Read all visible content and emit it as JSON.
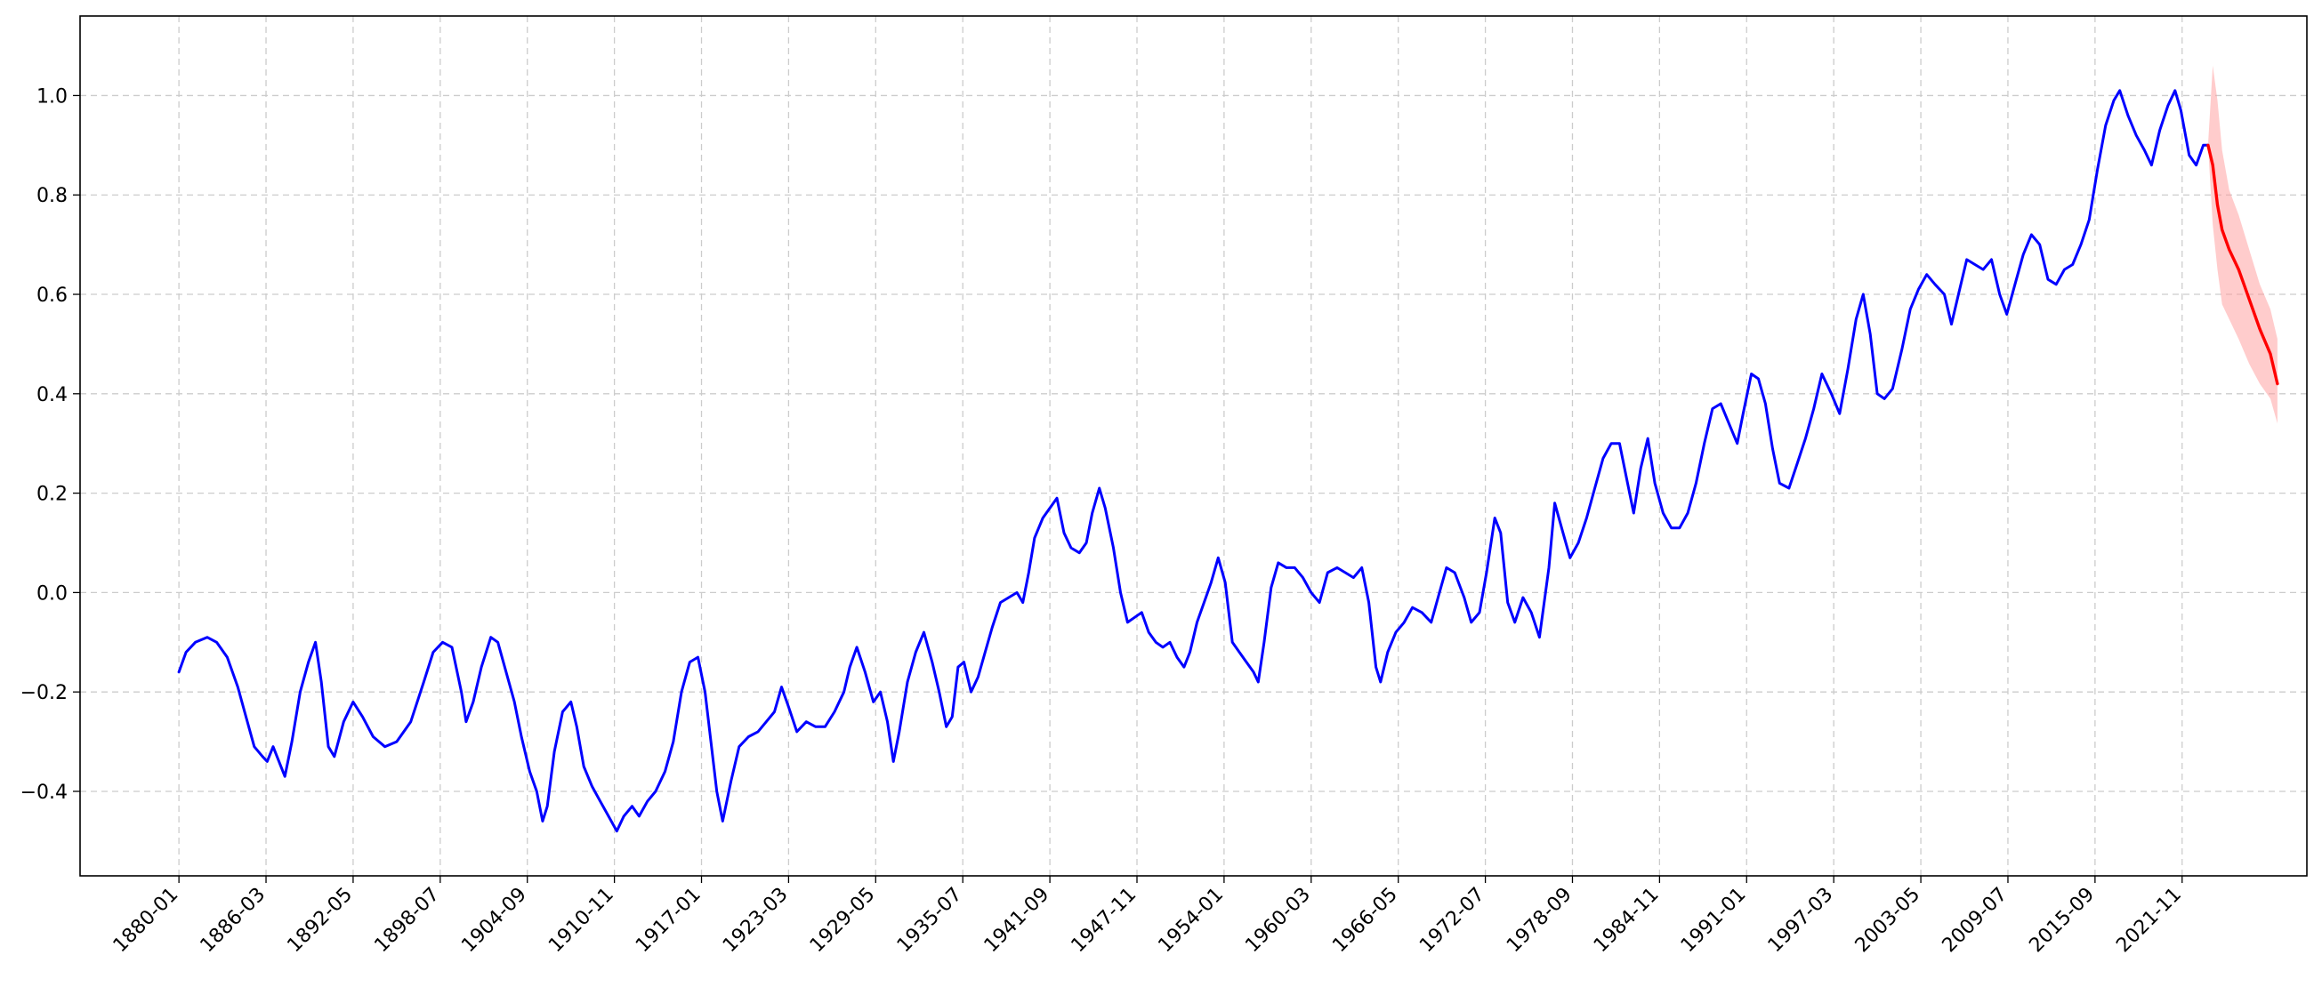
{
  "chart_data": {
    "type": "line",
    "title": "",
    "xlabel": "",
    "ylabel": "",
    "x_tick_labels": [
      "1880-01",
      "1886-03",
      "1892-05",
      "1898-07",
      "1904-09",
      "1910-11",
      "1917-01",
      "1923-03",
      "1929-05",
      "1935-07",
      "1941-09",
      "1947-11",
      "1954-01",
      "1960-03",
      "1966-05",
      "1972-07",
      "1978-09",
      "1984-11",
      "1991-01",
      "1997-03",
      "2003-05",
      "2009-07",
      "2015-09",
      "2021-11"
    ],
    "y_ticks": [
      -0.4,
      -0.2,
      0.0,
      0.2,
      0.4,
      0.6,
      0.8,
      1.0
    ],
    "y_tick_labels": [
      "−0.4",
      "−0.2",
      "0.0",
      "0.2",
      "0.4",
      "0.6",
      "0.8",
      "1.0"
    ],
    "xlim": [
      "1873-01",
      "2030-09"
    ],
    "ylim": [
      -0.57,
      1.16
    ],
    "grid": true,
    "grid_style": "dashed",
    "series": [
      {
        "color": "#0000ff",
        "points": [
          [
            "1880-01",
            -0.16
          ],
          [
            "1880-07",
            -0.12
          ],
          [
            "1881-03",
            -0.1
          ],
          [
            "1882-01",
            -0.09
          ],
          [
            "1882-09",
            -0.1
          ],
          [
            "1883-06",
            -0.13
          ],
          [
            "1884-03",
            -0.19
          ],
          [
            "1884-10",
            -0.25
          ],
          [
            "1885-05",
            -0.31
          ],
          [
            "1885-12",
            -0.33
          ],
          [
            "1886-04",
            -0.34
          ],
          [
            "1886-09",
            -0.31
          ],
          [
            "1887-02",
            -0.34
          ],
          [
            "1887-07",
            -0.37
          ],
          [
            "1888-01",
            -0.3
          ],
          [
            "1888-08",
            -0.2
          ],
          [
            "1889-03",
            -0.14
          ],
          [
            "1889-09",
            -0.1
          ],
          [
            "1890-02",
            -0.18
          ],
          [
            "1890-08",
            -0.31
          ],
          [
            "1891-01",
            -0.33
          ],
          [
            "1891-09",
            -0.26
          ],
          [
            "1892-05",
            -0.22
          ],
          [
            "1893-01",
            -0.25
          ],
          [
            "1893-10",
            -0.29
          ],
          [
            "1894-08",
            -0.31
          ],
          [
            "1895-06",
            -0.3
          ],
          [
            "1896-06",
            -0.26
          ],
          [
            "1897-05",
            -0.18
          ],
          [
            "1898-01",
            -0.12
          ],
          [
            "1898-09",
            -0.1
          ],
          [
            "1899-05",
            -0.11
          ],
          [
            "1900-01",
            -0.2
          ],
          [
            "1900-05",
            -0.26
          ],
          [
            "1900-11",
            -0.22
          ],
          [
            "1901-06",
            -0.15
          ],
          [
            "1902-02",
            -0.09
          ],
          [
            "1902-08",
            -0.1
          ],
          [
            "1903-03",
            -0.16
          ],
          [
            "1903-10",
            -0.22
          ],
          [
            "1904-04",
            -0.29
          ],
          [
            "1904-11",
            -0.36
          ],
          [
            "1905-05",
            -0.4
          ],
          [
            "1905-10",
            -0.46
          ],
          [
            "1906-02",
            -0.43
          ],
          [
            "1906-08",
            -0.32
          ],
          [
            "1907-03",
            -0.24
          ],
          [
            "1907-10",
            -0.22
          ],
          [
            "1908-03",
            -0.27
          ],
          [
            "1908-09",
            -0.35
          ],
          [
            "1909-04",
            -0.39
          ],
          [
            "1909-11",
            -0.42
          ],
          [
            "1910-06",
            -0.45
          ],
          [
            "1911-01",
            -0.48
          ],
          [
            "1911-07",
            -0.45
          ],
          [
            "1912-02",
            -0.43
          ],
          [
            "1912-08",
            -0.45
          ],
          [
            "1913-03",
            -0.42
          ],
          [
            "1913-10",
            -0.4
          ],
          [
            "1914-06",
            -0.36
          ],
          [
            "1915-01",
            -0.3
          ],
          [
            "1915-08",
            -0.2
          ],
          [
            "1916-03",
            -0.14
          ],
          [
            "1916-10",
            -0.13
          ],
          [
            "1917-04",
            -0.2
          ],
          [
            "1917-09",
            -0.3
          ],
          [
            "1918-02",
            -0.4
          ],
          [
            "1918-07",
            -0.46
          ],
          [
            "1919-02",
            -0.38
          ],
          [
            "1919-09",
            -0.31
          ],
          [
            "1920-05",
            -0.29
          ],
          [
            "1921-01",
            -0.28
          ],
          [
            "1921-08",
            -0.26
          ],
          [
            "1922-03",
            -0.24
          ],
          [
            "1922-09",
            -0.19
          ],
          [
            "1923-03",
            -0.23
          ],
          [
            "1923-10",
            -0.28
          ],
          [
            "1924-06",
            -0.26
          ],
          [
            "1925-02",
            -0.27
          ],
          [
            "1925-10",
            -0.27
          ],
          [
            "1926-06",
            -0.24
          ],
          [
            "1927-02",
            -0.2
          ],
          [
            "1927-07",
            -0.15
          ],
          [
            "1928-01",
            -0.11
          ],
          [
            "1928-08",
            -0.16
          ],
          [
            "1929-03",
            -0.22
          ],
          [
            "1929-09",
            -0.2
          ],
          [
            "1930-03",
            -0.26
          ],
          [
            "1930-08",
            -0.34
          ],
          [
            "1931-01",
            -0.28
          ],
          [
            "1931-08",
            -0.18
          ],
          [
            "1932-03",
            -0.12
          ],
          [
            "1932-10",
            -0.08
          ],
          [
            "1933-05",
            -0.14
          ],
          [
            "1933-11",
            -0.2
          ],
          [
            "1934-05",
            -0.27
          ],
          [
            "1934-10",
            -0.25
          ],
          [
            "1935-03",
            -0.15
          ],
          [
            "1935-08",
            -0.14
          ],
          [
            "1936-02",
            -0.2
          ],
          [
            "1936-08",
            -0.17
          ],
          [
            "1937-02",
            -0.12
          ],
          [
            "1937-08",
            -0.07
          ],
          [
            "1938-03",
            -0.02
          ],
          [
            "1938-10",
            -0.01
          ],
          [
            "1939-05",
            0.0
          ],
          [
            "1939-10",
            -0.02
          ],
          [
            "1940-03",
            0.04
          ],
          [
            "1940-08",
            0.11
          ],
          [
            "1941-03",
            0.15
          ],
          [
            "1941-09",
            0.17
          ],
          [
            "1942-03",
            0.19
          ],
          [
            "1942-09",
            0.12
          ],
          [
            "1943-03",
            0.09
          ],
          [
            "1943-10",
            0.08
          ],
          [
            "1944-04",
            0.1
          ],
          [
            "1944-09",
            0.16
          ],
          [
            "1945-03",
            0.21
          ],
          [
            "1945-08",
            0.17
          ],
          [
            "1946-03",
            0.09
          ],
          [
            "1946-09",
            0.0
          ],
          [
            "1947-03",
            -0.06
          ],
          [
            "1947-09",
            -0.05
          ],
          [
            "1948-03",
            -0.04
          ],
          [
            "1948-09",
            -0.08
          ],
          [
            "1949-03",
            -0.1
          ],
          [
            "1949-09",
            -0.11
          ],
          [
            "1950-03",
            -0.1
          ],
          [
            "1950-09",
            -0.13
          ],
          [
            "1951-03",
            -0.15
          ],
          [
            "1951-08",
            -0.12
          ],
          [
            "1952-02",
            -0.06
          ],
          [
            "1952-08",
            -0.02
          ],
          [
            "1953-02",
            0.02
          ],
          [
            "1953-08",
            0.07
          ],
          [
            "1954-02",
            0.02
          ],
          [
            "1954-08",
            -0.1
          ],
          [
            "1955-02",
            -0.12
          ],
          [
            "1955-08",
            -0.14
          ],
          [
            "1956-02",
            -0.16
          ],
          [
            "1956-06",
            -0.18
          ],
          [
            "1956-11",
            -0.1
          ],
          [
            "1957-05",
            0.01
          ],
          [
            "1957-11",
            0.06
          ],
          [
            "1958-06",
            0.05
          ],
          [
            "1959-01",
            0.05
          ],
          [
            "1959-08",
            0.03
          ],
          [
            "1960-03",
            0.0
          ],
          [
            "1960-10",
            -0.02
          ],
          [
            "1961-05",
            0.04
          ],
          [
            "1962-01",
            0.05
          ],
          [
            "1962-08",
            0.04
          ],
          [
            "1963-03",
            0.03
          ],
          [
            "1963-10",
            0.05
          ],
          [
            "1964-04",
            -0.02
          ],
          [
            "1964-10",
            -0.15
          ],
          [
            "1965-02",
            -0.18
          ],
          [
            "1965-08",
            -0.12
          ],
          [
            "1966-03",
            -0.08
          ],
          [
            "1966-10",
            -0.06
          ],
          [
            "1967-05",
            -0.03
          ],
          [
            "1968-01",
            -0.04
          ],
          [
            "1968-09",
            -0.06
          ],
          [
            "1969-04",
            0.0
          ],
          [
            "1969-10",
            0.05
          ],
          [
            "1970-05",
            0.04
          ],
          [
            "1971-01",
            -0.01
          ],
          [
            "1971-07",
            -0.06
          ],
          [
            "1972-02",
            -0.04
          ],
          [
            "1972-08",
            0.04
          ],
          [
            "1973-03",
            0.15
          ],
          [
            "1973-08",
            0.12
          ],
          [
            "1974-02",
            -0.02
          ],
          [
            "1974-08",
            -0.06
          ],
          [
            "1975-03",
            -0.01
          ],
          [
            "1975-10",
            -0.04
          ],
          [
            "1976-05",
            -0.09
          ],
          [
            "1977-01",
            0.05
          ],
          [
            "1977-06",
            0.18
          ],
          [
            "1978-01",
            0.12
          ],
          [
            "1978-07",
            0.07
          ],
          [
            "1979-02",
            0.1
          ],
          [
            "1979-09",
            0.15
          ],
          [
            "1980-04",
            0.21
          ],
          [
            "1980-11",
            0.27
          ],
          [
            "1981-06",
            0.3
          ],
          [
            "1982-01",
            0.3
          ],
          [
            "1982-07",
            0.23
          ],
          [
            "1983-01",
            0.16
          ],
          [
            "1983-07",
            0.25
          ],
          [
            "1984-01",
            0.31
          ],
          [
            "1984-07",
            0.22
          ],
          [
            "1985-02",
            0.16
          ],
          [
            "1985-09",
            0.13
          ],
          [
            "1986-04",
            0.13
          ],
          [
            "1986-11",
            0.16
          ],
          [
            "1987-06",
            0.22
          ],
          [
            "1988-01",
            0.3
          ],
          [
            "1988-08",
            0.37
          ],
          [
            "1989-03",
            0.38
          ],
          [
            "1989-10",
            0.34
          ],
          [
            "1990-05",
            0.3
          ],
          [
            "1990-10",
            0.36
          ],
          [
            "1991-05",
            0.44
          ],
          [
            "1991-11",
            0.43
          ],
          [
            "1992-05",
            0.38
          ],
          [
            "1992-11",
            0.29
          ],
          [
            "1993-05",
            0.22
          ],
          [
            "1994-01",
            0.21
          ],
          [
            "1994-08",
            0.26
          ],
          [
            "1995-03",
            0.31
          ],
          [
            "1995-10",
            0.37
          ],
          [
            "1996-05",
            0.44
          ],
          [
            "1997-01",
            0.4
          ],
          [
            "1997-08",
            0.36
          ],
          [
            "1998-03",
            0.45
          ],
          [
            "1998-10",
            0.55
          ],
          [
            "1999-04",
            0.6
          ],
          [
            "1999-10",
            0.52
          ],
          [
            "2000-04",
            0.4
          ],
          [
            "2000-10",
            0.39
          ],
          [
            "2001-05",
            0.41
          ],
          [
            "2002-01",
            0.49
          ],
          [
            "2002-08",
            0.57
          ],
          [
            "2003-03",
            0.61
          ],
          [
            "2003-10",
            0.64
          ],
          [
            "2004-05",
            0.62
          ],
          [
            "2005-01",
            0.6
          ],
          [
            "2005-07",
            0.54
          ],
          [
            "2006-01",
            0.6
          ],
          [
            "2006-08",
            0.67
          ],
          [
            "2007-03",
            0.66
          ],
          [
            "2007-10",
            0.65
          ],
          [
            "2008-05",
            0.67
          ],
          [
            "2008-12",
            0.6
          ],
          [
            "2009-06",
            0.56
          ],
          [
            "2010-01",
            0.62
          ],
          [
            "2010-08",
            0.68
          ],
          [
            "2011-03",
            0.72
          ],
          [
            "2011-10",
            0.7
          ],
          [
            "2012-05",
            0.63
          ],
          [
            "2012-12",
            0.62
          ],
          [
            "2013-07",
            0.65
          ],
          [
            "2014-02",
            0.66
          ],
          [
            "2014-09",
            0.7
          ],
          [
            "2015-04",
            0.75
          ],
          [
            "2015-11",
            0.85
          ],
          [
            "2016-06",
            0.94
          ],
          [
            "2017-01",
            0.99
          ],
          [
            "2017-06",
            1.01
          ],
          [
            "2018-01",
            0.96
          ],
          [
            "2018-08",
            0.92
          ],
          [
            "2019-03",
            0.89
          ],
          [
            "2019-09",
            0.86
          ],
          [
            "2020-04",
            0.93
          ],
          [
            "2020-11",
            0.98
          ],
          [
            "2021-05",
            1.01
          ],
          [
            "2021-10",
            0.97
          ],
          [
            "2022-05",
            0.88
          ],
          [
            "2022-11",
            0.86
          ],
          [
            "2023-05",
            0.9
          ],
          [
            "2023-09",
            0.9
          ]
        ]
      },
      {
        "color": "#ff0000",
        "points": [
          [
            "2023-09",
            0.9
          ],
          [
            "2024-01",
            0.86
          ],
          [
            "2024-05",
            0.78
          ],
          [
            "2024-09",
            0.73
          ],
          [
            "2025-03",
            0.69
          ],
          [
            "2025-11",
            0.65
          ],
          [
            "2026-08",
            0.59
          ],
          [
            "2027-05",
            0.53
          ],
          [
            "2028-02",
            0.48
          ],
          [
            "2028-08",
            0.42
          ]
        ],
        "band_color": "#ff9999",
        "band_lower": [
          0.9,
          0.74,
          0.65,
          0.58,
          0.55,
          0.51,
          0.46,
          0.42,
          0.39,
          0.34
        ],
        "band_upper": [
          0.9,
          1.06,
          0.99,
          0.89,
          0.81,
          0.76,
          0.69,
          0.62,
          0.57,
          0.51
        ]
      }
    ]
  }
}
